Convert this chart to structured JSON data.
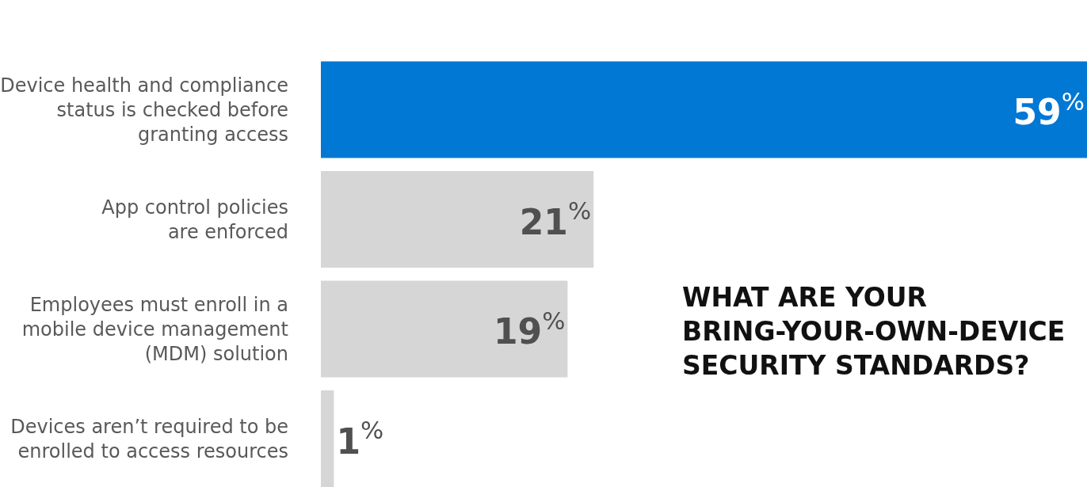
{
  "chart_data": {
    "type": "bar",
    "orientation": "horizontal",
    "title": "WHAT ARE YOUR BRING-YOUR-OWN-DEVICE SECURITY STANDARDS?",
    "categories": [
      "Device health and compliance\nstatus is checked before\ngranting access",
      "App control policies\nare enforced",
      "Employees must enroll in a\nmobile device management\n(MDM) solution",
      "Devices aren’t required to be\nenrolled to access resources"
    ],
    "values": [
      59,
      21,
      19,
      1
    ],
    "colors": [
      "#0078d4",
      "#d6d6d6",
      "#d6d6d6",
      "#d6d6d6"
    ],
    "value_labels": [
      "59$^{%}$",
      "21$^{%}$",
      "19$^{%}$",
      "1$^{%}$"
    ],
    "xlim": [
      0,
      59
    ],
    "legend": false
  }
}
